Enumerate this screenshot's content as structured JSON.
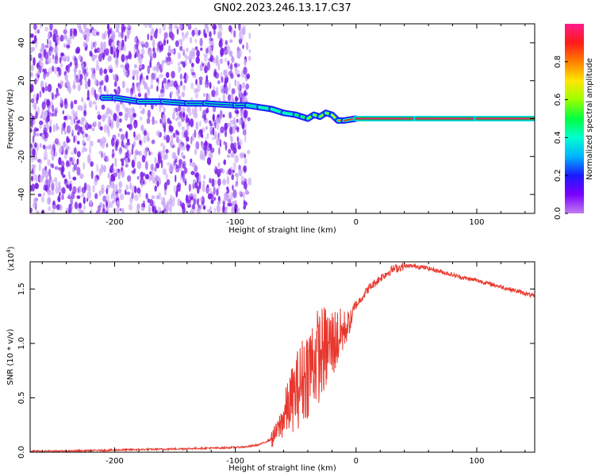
{
  "title": "GN02.2023.246.13.17.C37",
  "colors": {
    "snr_line": "#e8382e",
    "dots": "#7b1fe8",
    "colorbar": [
      "#c27cf0",
      "#7a00ff",
      "#1a1aff",
      "#00b4ff",
      "#00ffd0",
      "#00ff40",
      "#9cff00",
      "#ffe600",
      "#ff8000",
      "#ff1a1a",
      "#ff1a8c"
    ]
  },
  "chart_data": [
    {
      "type": "heatmap",
      "xlabel": "Height of straight line (km)",
      "ylabel": "Frequency (Hz)",
      "xlim": [
        -270,
        148
      ],
      "ylim": [
        -50,
        50
      ],
      "xticks": [
        -200,
        -100,
        0,
        100
      ],
      "xtick_labels": [
        "-200",
        "-100",
        "0",
        "100"
      ],
      "yticks": [
        -40,
        -20,
        0,
        20,
        40
      ],
      "ytick_labels": [
        "-40",
        "-20",
        "0",
        "20",
        "40"
      ],
      "colorbar": {
        "label": "Normalized spectral amplitude",
        "range": [
          0,
          1
        ],
        "ticks": [
          0.0,
          0.2,
          0.4,
          0.6,
          0.8
        ],
        "tick_labels": [
          "0.0",
          "0.2",
          "0.4",
          "0.6",
          "0.8"
        ]
      },
      "noise_region_x": [
        -270,
        -88
      ],
      "ridge": {
        "x": [
          -210,
          -200,
          -180,
          -160,
          -140,
          -125,
          -100,
          -90,
          -80,
          -70,
          -60,
          -50,
          -45,
          -40,
          -35,
          -30,
          -25,
          -20,
          -15,
          -10,
          0,
          50,
          100,
          148
        ],
        "freq": [
          11,
          11,
          9,
          9,
          8,
          8,
          7,
          7,
          6,
          5,
          3,
          2,
          1,
          0,
          2,
          1,
          3,
          2,
          -1,
          -1,
          0,
          0,
          0,
          0
        ],
        "amplitude": [
          0.22,
          0.2,
          0.12,
          0.18,
          0.12,
          0.22,
          0.12,
          0.3,
          0.35,
          0.35,
          0.4,
          0.45,
          0.5,
          0.55,
          0.6,
          0.55,
          0.6,
          0.65,
          0.7,
          0.8,
          0.95,
          0.95,
          0.95,
          0.95
        ]
      }
    },
    {
      "type": "line",
      "xlabel": "Height of straight line (km)",
      "ylabel": "SNR (10 * v/v)",
      "y_multiplier": "(x10",
      "y_multiplier_exp": "4",
      "xlim": [
        -270,
        148
      ],
      "ylim": [
        0,
        1.75
      ],
      "xticks": [
        -200,
        -100,
        0,
        100
      ],
      "xtick_labels": [
        "-200",
        "-100",
        "0",
        "100"
      ],
      "yticks": [
        0.0,
        0.5,
        1.0,
        1.5
      ],
      "ytick_labels": [
        "0.0",
        "0.5",
        "1.0",
        "1.5"
      ],
      "series": [
        {
          "x": [
            -270,
            -240,
            -200,
            -150,
            -110,
            -90,
            -80,
            -70,
            -65,
            -60,
            -55,
            -50,
            -45,
            -40,
            -35,
            -30,
            -25,
            -20,
            -15,
            -10,
            -5,
            0,
            10,
            20,
            30,
            40,
            50,
            60,
            70,
            80,
            90,
            100,
            110,
            120,
            130,
            140,
            148
          ],
          "y": [
            0.01,
            0.01,
            0.02,
            0.03,
            0.04,
            0.05,
            0.07,
            0.12,
            0.2,
            0.32,
            0.45,
            0.55,
            0.65,
            0.75,
            0.85,
            0.9,
            0.95,
            1.0,
            1.05,
            1.12,
            1.2,
            1.35,
            1.5,
            1.6,
            1.68,
            1.71,
            1.71,
            1.69,
            1.66,
            1.63,
            1.6,
            1.58,
            1.55,
            1.52,
            1.49,
            1.46,
            1.43
          ]
        }
      ]
    }
  ]
}
